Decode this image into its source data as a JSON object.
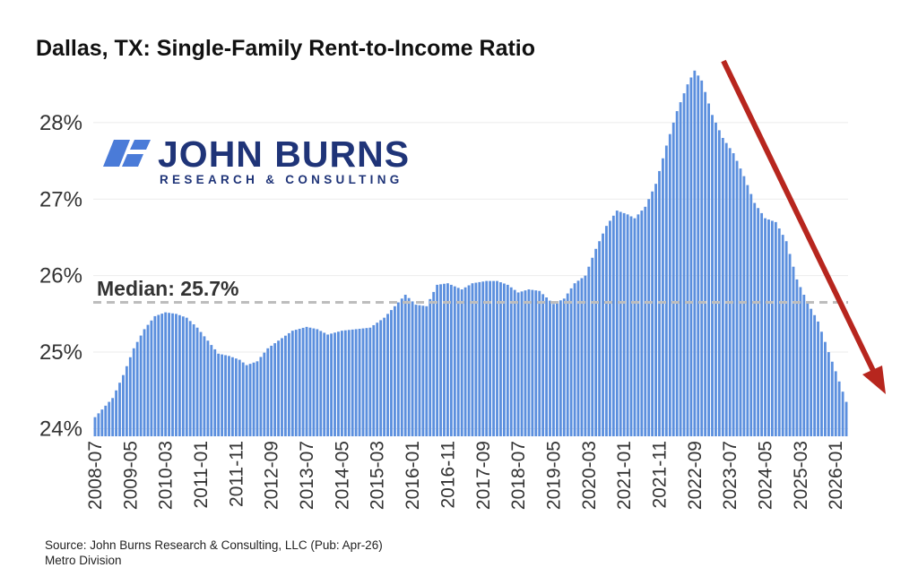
{
  "title": "Dallas, TX: Single-Family Rent-to-Income Ratio",
  "logo": {
    "name": "JOHN BURNS",
    "tagline": "RESEARCH & CONSULTING",
    "color": "#1f3478",
    "mark_color": "#4a7bd8"
  },
  "median": {
    "label": "Median: 25.7%",
    "value": 25.65
  },
  "source": {
    "line1": "Source: John Burns Research & Consulting, LLC (Pub: Apr-26)",
    "line2": "Metro Division"
  },
  "colors": {
    "bars": "#5b8fde",
    "median_line": "#bdbdbd",
    "arrow": "#b7261e"
  },
  "chart_data": {
    "type": "bar",
    "title": "Dallas, TX: Single-Family Rent-to-Income Ratio",
    "xlabel": "",
    "ylabel": "",
    "start": "2008-07",
    "end": "2026-04",
    "frequency": "monthly",
    "ylim": [
      23.9,
      28.9
    ],
    "yticks": [
      24,
      25,
      26,
      27,
      28
    ],
    "ytick_labels": [
      "24%",
      "25%",
      "26%",
      "27%",
      "28%"
    ],
    "xtick_labels": [
      "2008-07",
      "2009-05",
      "2010-03",
      "2011-01",
      "2011-11",
      "2012-09",
      "2013-07",
      "2014-05",
      "2015-03",
      "2016-01",
      "2016-11",
      "2017-09",
      "2018-07",
      "2019-05",
      "2020-03",
      "2021-01",
      "2021-11",
      "2022-09",
      "2023-07",
      "2024-05",
      "2025-03",
      "2026-01"
    ],
    "grid": true,
    "anchors": [
      [
        "2008-07",
        24.15
      ],
      [
        "2008-09",
        24.25
      ],
      [
        "2008-12",
        24.4
      ],
      [
        "2009-03",
        24.7
      ],
      [
        "2009-06",
        25.05
      ],
      [
        "2009-09",
        25.3
      ],
      [
        "2009-12",
        25.47
      ],
      [
        "2010-03",
        25.52
      ],
      [
        "2010-06",
        25.5
      ],
      [
        "2010-09",
        25.45
      ],
      [
        "2010-12",
        25.32
      ],
      [
        "2011-03",
        25.15
      ],
      [
        "2011-06",
        24.98
      ],
      [
        "2011-09",
        24.95
      ],
      [
        "2011-12",
        24.9
      ],
      [
        "2012-02",
        24.83
      ],
      [
        "2012-05",
        24.88
      ],
      [
        "2012-08",
        25.05
      ],
      [
        "2012-11",
        25.15
      ],
      [
        "2013-03",
        25.28
      ],
      [
        "2013-07",
        25.33
      ],
      [
        "2013-10",
        25.3
      ],
      [
        "2014-01",
        25.23
      ],
      [
        "2014-05",
        25.28
      ],
      [
        "2014-09",
        25.3
      ],
      [
        "2015-01",
        25.32
      ],
      [
        "2015-05",
        25.45
      ],
      [
        "2015-08",
        25.6
      ],
      [
        "2015-11",
        25.75
      ],
      [
        "2016-02",
        25.62
      ],
      [
        "2016-05",
        25.6
      ],
      [
        "2016-08",
        25.88
      ],
      [
        "2016-11",
        25.9
      ],
      [
        "2017-03",
        25.82
      ],
      [
        "2017-06",
        25.9
      ],
      [
        "2017-10",
        25.93
      ],
      [
        "2018-01",
        25.93
      ],
      [
        "2018-04",
        25.88
      ],
      [
        "2018-07",
        25.78
      ],
      [
        "2018-10",
        25.82
      ],
      [
        "2019-01",
        25.8
      ],
      [
        "2019-05",
        25.63
      ],
      [
        "2019-08",
        25.7
      ],
      [
        "2019-11",
        25.9
      ],
      [
        "2020-02",
        26.0
      ],
      [
        "2020-05",
        26.35
      ],
      [
        "2020-08",
        26.65
      ],
      [
        "2020-11",
        26.85
      ],
      [
        "2021-02",
        26.8
      ],
      [
        "2021-04",
        26.75
      ],
      [
        "2021-07",
        26.9
      ],
      [
        "2021-10",
        27.2
      ],
      [
        "2022-01",
        27.7
      ],
      [
        "2022-04",
        28.15
      ],
      [
        "2022-07",
        28.5
      ],
      [
        "2022-09",
        28.68
      ],
      [
        "2022-11",
        28.55
      ],
      [
        "2023-02",
        28.1
      ],
      [
        "2023-05",
        27.8
      ],
      [
        "2023-08",
        27.6
      ],
      [
        "2023-11",
        27.3
      ],
      [
        "2024-02",
        26.95
      ],
      [
        "2024-05",
        26.75
      ],
      [
        "2024-08",
        26.7
      ],
      [
        "2024-11",
        26.45
      ],
      [
        "2025-02",
        25.95
      ],
      [
        "2025-05",
        25.65
      ],
      [
        "2025-08",
        25.4
      ],
      [
        "2025-11",
        25.0
      ],
      [
        "2026-01",
        24.75
      ],
      [
        "2026-04",
        24.35
      ]
    ]
  }
}
